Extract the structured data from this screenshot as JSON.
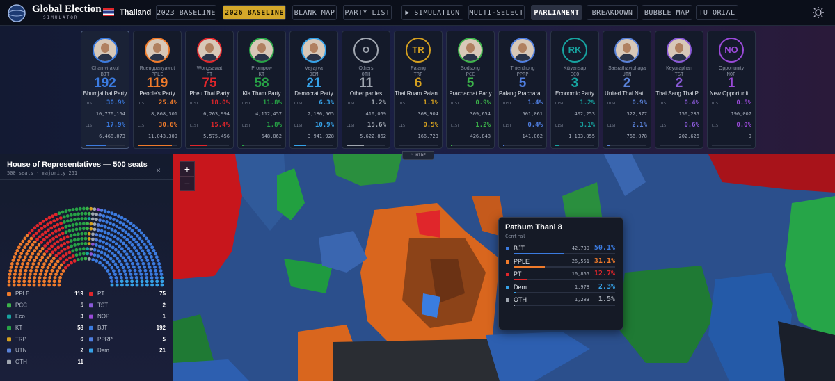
{
  "header": {
    "logo_title": "Global Election",
    "logo_subtitle": "SIMULATOR",
    "country": "Thailand",
    "buttons": [
      {
        "label": "2023 BASELINE"
      },
      {
        "label": "2026 BASELINE",
        "active": true,
        "color": "#d4a82a"
      },
      {
        "label": "BLANK MAP"
      },
      {
        "label": "PARTY LIST"
      },
      {
        "label": "▶ SIMULATION"
      },
      {
        "label": "MULTI-SELECT"
      },
      {
        "label": "PARLIAMENT",
        "active": true,
        "color": "#2b3142"
      },
      {
        "label": "BREAKDOWN"
      },
      {
        "label": "BUBBLE MAP"
      },
      {
        "label": "TUTORIAL"
      }
    ]
  },
  "party_cards": {
    "dist_label": "DIST",
    "list_label": "LIST",
    "items": [
      {
        "leader": "Charnvirakul",
        "abbr": "BJT",
        "seats": 192,
        "party": "Bhumjaithai Party",
        "dist_pct": "30.9%",
        "dist_votes": "10,776,164",
        "list_pct": "17.9%",
        "list_votes": "6,468,073",
        "color": "#3b7be0"
      },
      {
        "leader": "Ruengpanyawut",
        "abbr": "PPLE",
        "seats": 119,
        "party": "People's Party",
        "dist_pct": "25.4%",
        "dist_votes": "8,868,301",
        "list_pct": "30.6%",
        "list_votes": "11,043,309",
        "color": "#f07b2b"
      },
      {
        "leader": "Wongsawat",
        "abbr": "PT",
        "seats": 75,
        "party": "Pheu Thai Party",
        "dist_pct": "18.0%",
        "dist_votes": "6,263,994",
        "list_pct": "15.4%",
        "list_votes": "5,575,456",
        "color": "#e0262b"
      },
      {
        "leader": "Prompow",
        "abbr": "KT",
        "seats": 58,
        "party": "Kla Tham Party",
        "dist_pct": "11.8%",
        "dist_votes": "4,112,457",
        "list_pct": "1.8%",
        "list_votes": "648,062",
        "color": "#27a346"
      },
      {
        "leader": "Vejjajiva",
        "abbr": "DEM",
        "seats": 21,
        "party": "Democrat Party",
        "dist_pct": "6.3%",
        "dist_votes": "2,186,565",
        "list_pct": "10.9%",
        "list_votes": "3,941,928",
        "color": "#36a2e8"
      },
      {
        "leader": "Others",
        "abbr": "OTH",
        "seats": 11,
        "party": "Other parties",
        "dist_pct": "1.2%",
        "dist_votes": "410,069",
        "list_pct": "15.6%",
        "list_votes": "5,622,862",
        "color": "#a0a6b0",
        "badge": "O"
      },
      {
        "leader": "Palang",
        "abbr": "TRP",
        "seats": 6,
        "party": "Thai Ruam Palan...",
        "dist_pct": "1.1%",
        "dist_votes": "368,904",
        "list_pct": "0.5%",
        "list_votes": "166,723",
        "color": "#d4a020",
        "badge": "TR"
      },
      {
        "leader": "Sodsong",
        "abbr": "PCC",
        "seats": 5,
        "party": "Prachachat Party",
        "dist_pct": "0.9%",
        "dist_votes": "309,654",
        "list_pct": "1.2%",
        "list_votes": "426,848",
        "color": "#3cb34a"
      },
      {
        "leader": "Thienthong",
        "abbr": "PPRP",
        "seats": 5,
        "party": "Palang Pracharat...",
        "dist_pct": "1.4%",
        "dist_votes": "501,061",
        "list_pct": "0.4%",
        "list_votes": "141,062",
        "color": "#4f7ee0"
      },
      {
        "leader": "Kitiyansap",
        "abbr": "ECO",
        "seats": 3,
        "party": "Economic Party",
        "dist_pct": "1.2%",
        "dist_votes": "402,253",
        "list_pct": "3.1%",
        "list_votes": "1,133,055",
        "color": "#17a3a0",
        "badge": "RK"
      },
      {
        "leader": "Saisrathaviphaga",
        "abbr": "UTN",
        "seats": 2,
        "party": "United Thai Nati...",
        "dist_pct": "0.9%",
        "dist_votes": "322,377",
        "list_pct": "2.1%",
        "list_votes": "766,078",
        "color": "#5a82d8"
      },
      {
        "leader": "Keyuraphan",
        "abbr": "TST",
        "seats": 2,
        "party": "Thai Sang Thai P...",
        "dist_pct": "0.4%",
        "dist_votes": "150,285",
        "list_pct": "0.6%",
        "list_votes": "202,626",
        "color": "#8a5ad8"
      },
      {
        "leader": "Opportunity",
        "abbr": "NOP",
        "seats": 1,
        "party": "New Opportunit...",
        "dist_pct": "0.5%",
        "dist_votes": "190,007",
        "list_pct": "0.0%",
        "list_votes": "0",
        "color": "#9a4ad8",
        "badge": "NO"
      }
    ]
  },
  "hide_label": "HIDE",
  "parliament": {
    "title": "House of Representatives — 500 seats",
    "subtitle": "500 seats · majority 251",
    "close": "×",
    "legend": [
      {
        "name": "PPLE",
        "seats": 119,
        "color": "#f07b2b"
      },
      {
        "name": "PT",
        "seats": 75,
        "color": "#e0262b"
      },
      {
        "name": "PCC",
        "seats": 5,
        "color": "#3cb34a"
      },
      {
        "name": "TST",
        "seats": 2,
        "color": "#8a5ad8"
      },
      {
        "name": "Eco",
        "seats": 3,
        "color": "#17a3a0"
      },
      {
        "name": "NOP",
        "seats": 1,
        "color": "#9a4ad8"
      },
      {
        "name": "KT",
        "seats": 58,
        "color": "#27a346"
      },
      {
        "name": "BJT",
        "seats": 192,
        "color": "#3b7be0"
      },
      {
        "name": "TRP",
        "seats": 6,
        "color": "#d4a020"
      },
      {
        "name": "PPRP",
        "seats": 5,
        "color": "#4f7ee0"
      },
      {
        "name": "UTN",
        "seats": 2,
        "color": "#5a82d8"
      },
      {
        "name": "Dem",
        "seats": 21,
        "color": "#36a2e8"
      },
      {
        "name": "OTH",
        "seats": 11,
        "color": "#a0a6b0"
      }
    ]
  },
  "map": {
    "zoom_in": "+",
    "zoom_out": "−"
  },
  "tooltip": {
    "title": "Pathum Thani 8",
    "region": "Central",
    "rows": [
      {
        "party": "BJT",
        "votes": "42,730",
        "pct": "50.1%",
        "color": "#3b7be0"
      },
      {
        "party": "PPLE",
        "votes": "26,551",
        "pct": "31.1%",
        "color": "#f07b2b"
      },
      {
        "party": "PT",
        "votes": "10,865",
        "pct": "12.7%",
        "color": "#e0262b"
      },
      {
        "party": "Dem",
        "votes": "1,978",
        "pct": "2.3%",
        "color": "#36a2e8"
      },
      {
        "party": "OTH",
        "votes": "1,283",
        "pct": "1.5%",
        "color": "#a0a6b0"
      }
    ]
  }
}
